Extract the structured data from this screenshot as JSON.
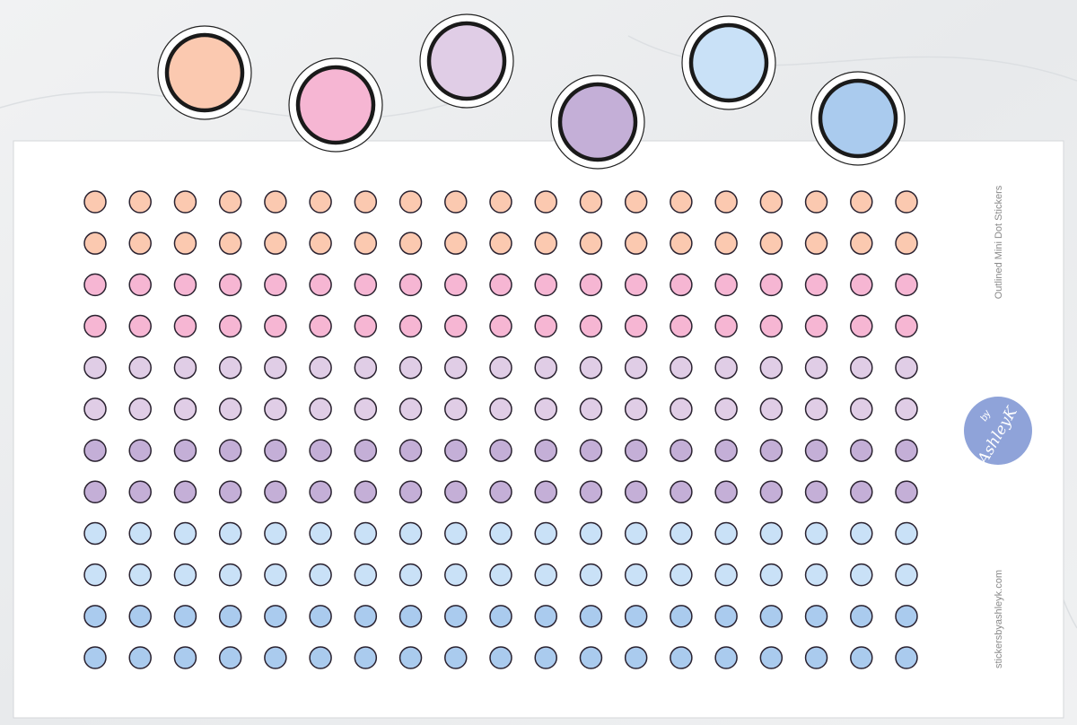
{
  "sheet": {
    "title": "Outlined Mini Dot Stickers",
    "website": "stickersbyashleyk.com",
    "logo": {
      "by": "by",
      "name": "AshleyK"
    }
  },
  "colors": [
    "#fbc9b0",
    "#f6b6d3",
    "#e0cde6",
    "#c4afd7",
    "#c9e1f7",
    "#aacbee"
  ]
}
